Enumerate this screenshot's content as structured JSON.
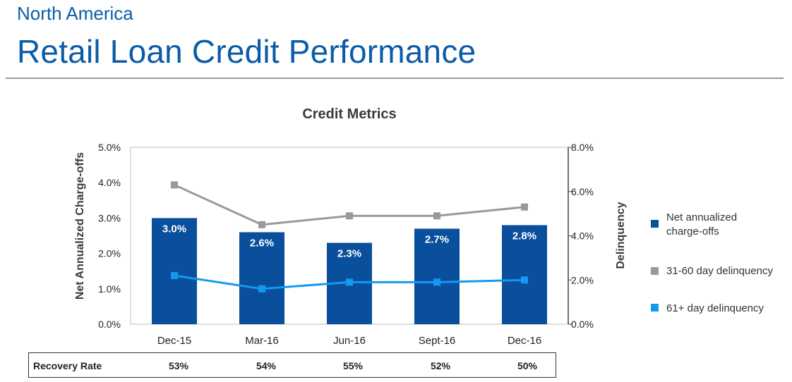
{
  "header": {
    "region": "North America",
    "title": "Retail Loan Credit Performance"
  },
  "colors": {
    "brand": "#0b5ca8",
    "bar": "#0a4f9c",
    "gray_series": "#999999",
    "blue_series": "#1499f0"
  },
  "chart_data": {
    "type": "bar",
    "title": "Credit Metrics",
    "categories": [
      "Dec-15",
      "Mar-16",
      "Jun-16",
      "Sept-16",
      "Dec-16"
    ],
    "ylabel": "Net Annualized Charge-offs",
    "y2label": "Delinquency",
    "ylim": [
      0,
      5
    ],
    "y2lim": [
      0,
      8
    ],
    "y_ticks": [
      "0.0%",
      "1.0%",
      "2.0%",
      "3.0%",
      "4.0%",
      "5.0%"
    ],
    "y2_ticks": [
      "0.0%",
      "2.0%",
      "4.0%",
      "6.0%",
      "8.0%"
    ],
    "series": [
      {
        "name": "Net annualized charge-offs",
        "type": "bar",
        "axis": "left",
        "values": [
          3.0,
          2.6,
          2.3,
          2.7,
          2.8
        ],
        "labels": [
          "3.0%",
          "2.6%",
          "2.3%",
          "2.7%",
          "2.8%"
        ]
      },
      {
        "name": "31-60 day delinquency",
        "type": "line",
        "axis": "right",
        "values": [
          6.3,
          4.5,
          4.9,
          4.9,
          5.3
        ]
      },
      {
        "name": "61+ day delinquency",
        "type": "line",
        "axis": "right",
        "values": [
          2.2,
          1.6,
          1.9,
          1.9,
          2.0
        ]
      }
    ],
    "legend": [
      "Net annualized\ncharge-offs",
      "31-60 day delinquency",
      "61+ day delinquency"
    ]
  },
  "recovery": {
    "label": "Recovery Rate",
    "values": [
      "53%",
      "54%",
      "55%",
      "52%",
      "50%"
    ]
  }
}
